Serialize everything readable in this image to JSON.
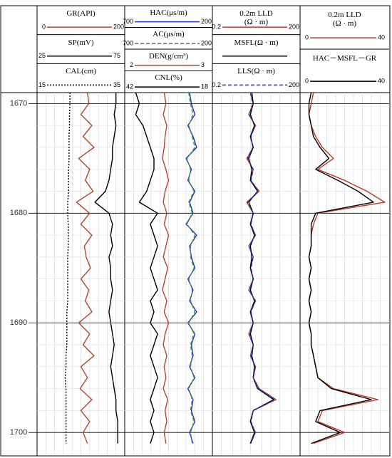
{
  "chart_data": [
    {
      "type": "line",
      "x": [
        1669,
        1670,
        1671,
        1672,
        1673,
        1674,
        1675,
        1676,
        1677,
        1678,
        1679,
        1680,
        1681,
        1682,
        1683,
        1684,
        1685,
        1686,
        1687,
        1688,
        1689,
        1690,
        1691,
        1692,
        1693,
        1694,
        1695,
        1696,
        1697,
        1698,
        1699,
        1700,
        1701
      ],
      "ylim": [
        1669,
        1702
      ],
      "yticks": [
        1670,
        1680,
        1690,
        1700
      ],
      "series": [
        {
          "name": "GR(API)",
          "color": "#b5452a",
          "style": "solid",
          "xlim": [
            0,
            200
          ],
          "values": [
            115,
            118,
            100,
            125,
            105,
            130,
            95,
            120,
            110,
            128,
            90,
            120,
            100,
            125,
            108,
            112,
            122,
            100,
            118,
            110,
            125,
            95,
            120,
            105,
            130,
            100,
            115,
            98,
            125,
            100,
            120,
            105,
            115
          ]
        },
        {
          "name": "SP(mV)",
          "color": "#000000",
          "style": "solid",
          "xlim": [
            25,
            75
          ],
          "values": [
            70,
            70,
            69,
            70,
            69,
            68,
            68,
            67,
            66,
            64,
            58,
            66,
            68,
            67,
            68,
            66,
            67,
            67,
            68,
            67,
            66,
            67,
            68,
            69,
            68,
            67,
            68,
            69,
            70,
            70,
            71,
            71,
            71
          ]
        },
        {
          "name": "CAL(cm)",
          "color": "#000000",
          "style": "dotted",
          "xlim": [
            15,
            35
          ],
          "values": [
            22.5,
            22.5,
            22.4,
            22.4,
            22.3,
            22.3,
            22.3,
            22.2,
            22.2,
            22.2,
            22.0,
            22.0,
            22.1,
            22.1,
            22.1,
            22.0,
            22.0,
            22.0,
            22.0,
            22.0,
            21.8,
            21.8,
            21.8,
            21.8,
            21.6,
            21.6,
            21.4,
            21.6,
            21.6,
            21.6,
            21.6,
            21.6,
            21.6
          ]
        }
      ]
    },
    {
      "type": "line",
      "x": [
        1669,
        1670,
        1671,
        1672,
        1673,
        1674,
        1675,
        1676,
        1677,
        1678,
        1679,
        1680,
        1681,
        1682,
        1683,
        1684,
        1685,
        1686,
        1687,
        1688,
        1689,
        1690,
        1691,
        1692,
        1693,
        1694,
        1695,
        1696,
        1697,
        1698,
        1699,
        1700,
        1701
      ],
      "series": [
        {
          "name": "HAC(μs/m)",
          "color": "#2233cc",
          "style": "solid",
          "xlim": [
            700,
            200
          ],
          "values": [
            330,
            320,
            300,
            340,
            310,
            290,
            350,
            320,
            340,
            300,
            330,
            310,
            350,
            290,
            330,
            320,
            300,
            340,
            310,
            330,
            290,
            340,
            300,
            320,
            310,
            330,
            300,
            340,
            310,
            320,
            300,
            330,
            310
          ]
        },
        {
          "name": "AC(μs/m)",
          "color": "#3a9a3a",
          "style": "dashed",
          "xlim": [
            700,
            200
          ],
          "values": [
            335,
            325,
            310,
            335,
            315,
            300,
            345,
            325,
            335,
            305,
            335,
            315,
            345,
            300,
            325,
            325,
            305,
            335,
            315,
            325,
            300,
            335,
            305,
            325,
            315,
            325,
            305,
            335,
            315,
            325,
            305,
            325,
            315
          ]
        },
        {
          "name": "DEN(g/cm³)",
          "color": "#b5452a",
          "style": "solid",
          "xlim": [
            2,
            3
          ],
          "values": [
            2.45,
            2.47,
            2.44,
            2.48,
            2.46,
            2.45,
            2.43,
            2.47,
            2.5,
            2.46,
            2.44,
            2.48,
            2.45,
            2.5,
            2.47,
            2.44,
            2.49,
            2.46,
            2.43,
            2.48,
            2.45,
            2.5,
            2.46,
            2.44,
            2.48,
            2.45,
            2.47,
            2.44,
            2.49,
            2.46,
            2.48,
            2.45,
            2.47
          ]
        },
        {
          "name": "CNL(%)",
          "color": "#000000",
          "style": "solid",
          "xlim": [
            42,
            18
          ],
          "values": [
            39,
            38,
            39,
            37,
            36,
            35,
            34,
            34,
            35,
            36,
            38,
            33,
            35,
            34,
            33,
            34,
            35,
            34,
            33,
            35,
            34,
            35,
            33,
            34,
            35,
            34,
            33,
            34,
            35,
            34,
            35,
            34,
            35
          ]
        }
      ]
    },
    {
      "type": "line",
      "xscale": "log",
      "x": [
        1669,
        1670,
        1671,
        1672,
        1673,
        1674,
        1675,
        1676,
        1677,
        1678,
        1679,
        1680,
        1681,
        1682,
        1683,
        1684,
        1685,
        1686,
        1687,
        1688,
        1689,
        1690,
        1691,
        1692,
        1693,
        1694,
        1695,
        1696,
        1697,
        1698,
        1699,
        1700,
        1701
      ],
      "series": [
        {
          "name": "0.2m LLD\n(Ω · m)",
          "color": "#c0392b",
          "style": "solid",
          "xlim": [
            0.2,
            200
          ],
          "values": [
            4,
            5,
            3.5,
            6,
            4,
            5,
            3,
            5,
            4,
            8,
            3,
            5,
            4,
            6,
            3.5,
            5,
            4,
            5,
            3.5,
            6,
            4,
            5,
            3.5,
            5,
            4,
            6,
            5,
            8,
            30,
            5,
            4,
            6,
            4
          ]
        },
        {
          "name": "MSFL(Ω · m)",
          "color": "#000000",
          "style": "solid",
          "values": [
            4.5,
            5,
            4,
            5.5,
            4,
            5,
            3.5,
            4.5,
            4,
            7,
            3.5,
            5,
            4,
            5.5,
            4,
            4.5,
            4,
            5,
            4,
            5.5,
            4,
            5,
            4,
            5,
            4.5,
            5.5,
            5,
            7,
            25,
            5,
            4,
            5.5,
            4
          ]
        },
        {
          "name": "LLS(Ω · m)",
          "color": "#2233cc",
          "style": "dashed",
          "xlim": [
            0.2,
            200
          ],
          "values": [
            4,
            4.8,
            3.6,
            5.8,
            4.2,
            4.8,
            3.2,
            5,
            4.2,
            7.5,
            3.2,
            5,
            4.2,
            5.8,
            3.6,
            5,
            4.2,
            5,
            3.6,
            5.8,
            4.2,
            5,
            3.6,
            5,
            4.2,
            5.8,
            5,
            7.5,
            28,
            5,
            4.2,
            5.8,
            4.2
          ]
        }
      ]
    },
    {
      "type": "line",
      "x": [
        1669,
        1670,
        1671,
        1672,
        1673,
        1674,
        1675,
        1676,
        1677,
        1678,
        1679,
        1680,
        1681,
        1682,
        1683,
        1684,
        1685,
        1686,
        1687,
        1688,
        1689,
        1690,
        1691,
        1692,
        1693,
        1694,
        1695,
        1696,
        1697,
        1698,
        1699,
        1700,
        1701
      ],
      "series": [
        {
          "name": "0.2m LLD\n(Ω · m)",
          "color": "#c0392b",
          "style": "solid",
          "xlim": [
            0,
            40
          ],
          "values": [
            6,
            5,
            4,
            5,
            7,
            10,
            15,
            8,
            20,
            30,
            38,
            8,
            6,
            5,
            5,
            4,
            5,
            4,
            5,
            4,
            5,
            4,
            5,
            5,
            6,
            7,
            8,
            15,
            35,
            10,
            8,
            20,
            6
          ]
        },
        {
          "name": "HAC－MSFL－GR",
          "color": "#000000",
          "style": "solid",
          "xlim": [
            0,
            40
          ],
          "values": [
            5,
            4,
            4,
            5,
            6,
            9,
            13,
            7,
            17,
            26,
            33,
            7,
            5,
            5,
            5,
            4,
            5,
            4,
            5,
            4,
            5,
            4,
            5,
            5,
            6,
            7,
            8,
            14,
            32,
            9,
            7,
            18,
            5
          ]
        }
      ]
    }
  ]
}
